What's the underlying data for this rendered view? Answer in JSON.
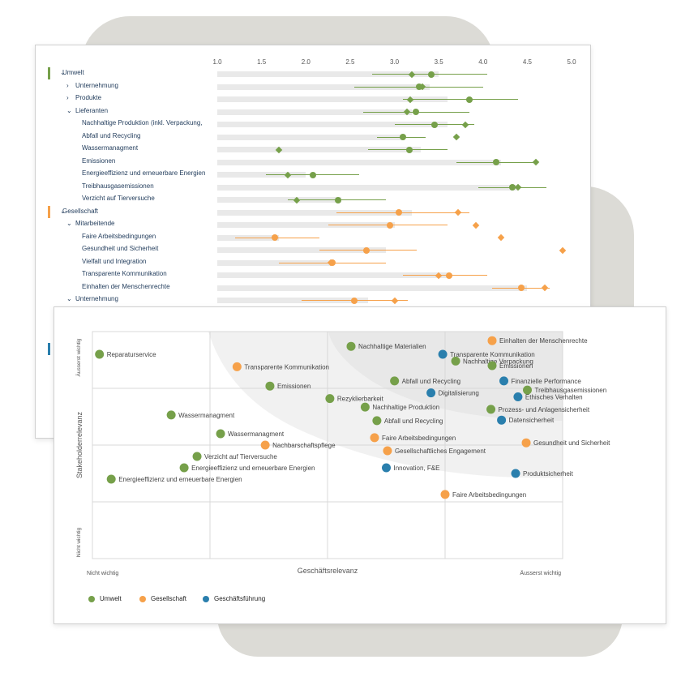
{
  "colors": {
    "umwelt": "#76a04a",
    "gesellschaft": "#f6a14a",
    "geschaeftsfuehrung": "#2a7fad",
    "grid": "#d8d8d8",
    "bar": "#e9e9e9"
  },
  "chart_data": [
    {
      "type": "bar",
      "axis_ticks": [
        "1.0",
        "1.5",
        "2.0",
        "2.5",
        "3.0",
        "3.5",
        "4.0",
        "4.5",
        "5.0"
      ],
      "xlim": [
        1.0,
        5.0
      ],
      "rows": [
        {
          "label": "Umwelt",
          "group": "umwelt",
          "level": 0,
          "chevron": "down",
          "bar": [
            1,
            3.5
          ],
          "range": [
            2.75,
            4.05
          ],
          "dot": 3.42,
          "diamond": 3.2
        },
        {
          "label": "Unternehmung",
          "group": "umwelt",
          "level": 1,
          "chevron": "right",
          "bar": [
            1,
            3.4
          ],
          "range": [
            2.55,
            4.0
          ],
          "dot": 3.28,
          "diamond": 3.32
        },
        {
          "label": "Produkte",
          "group": "umwelt",
          "level": 1,
          "chevron": "right",
          "bar": [
            1,
            3.6
          ],
          "range": [
            3.1,
            4.4
          ],
          "dot": 3.85,
          "diamond": 3.18
        },
        {
          "label": "Lieferanten",
          "group": "umwelt",
          "level": 1,
          "chevron": "down",
          "bar": [
            1,
            3.2
          ],
          "range": [
            2.65,
            3.85
          ],
          "dot": 3.24,
          "diamond": 3.14
        },
        {
          "label": "Nachhaltige Produktion (inkl. Verpackung,",
          "group": "umwelt",
          "level": 2,
          "chevron": "",
          "bar": [
            1,
            3.6
          ],
          "range": [
            3.0,
            3.9
          ],
          "dot": 3.45,
          "diamond": 3.8
        },
        {
          "label": "Abfall und Recycling",
          "group": "umwelt",
          "level": 2,
          "chevron": "",
          "bar": [
            1,
            3.1
          ],
          "range": [
            2.8,
            3.35
          ],
          "dot": 3.1,
          "diamond": 3.7
        },
        {
          "label": "Wassermanagment",
          "group": "umwelt",
          "level": 2,
          "chevron": "",
          "bar": [
            1,
            3.3
          ],
          "range": [
            2.7,
            3.6
          ],
          "dot": 3.17,
          "diamond": 1.7
        },
        {
          "label": "Emissionen",
          "group": "umwelt",
          "level": 2,
          "chevron": "",
          "bar": [
            1,
            4.2
          ],
          "range": [
            3.7,
            4.6
          ],
          "dot": 4.15,
          "diamond": 4.6
        },
        {
          "label": "Energieeffizienz und erneuerbare Energien",
          "group": "umwelt",
          "level": 2,
          "chevron": "",
          "bar": [
            1,
            2.0
          ],
          "range": [
            1.55,
            2.6
          ],
          "dot": 2.08,
          "diamond": 1.8
        },
        {
          "label": "Treibhausgasemissionen",
          "group": "umwelt",
          "level": 2,
          "chevron": "",
          "bar": [
            1,
            4.4
          ],
          "range": [
            3.95,
            4.72
          ],
          "dot": 4.33,
          "diamond": 4.4
        },
        {
          "label": "Verzicht auf Tierversuche",
          "group": "umwelt",
          "level": 2,
          "chevron": "",
          "bar": [
            1,
            2.4
          ],
          "range": [
            1.8,
            2.9
          ],
          "dot": 2.36,
          "diamond": 1.9
        },
        {
          "label": "Gesellschaft",
          "group": "gesellschaft",
          "level": 0,
          "chevron": "down",
          "bar": [
            1,
            3.2
          ],
          "range": [
            2.35,
            3.85
          ],
          "dot": 3.05,
          "diamond": 3.72
        },
        {
          "label": "Mitarbeitende",
          "group": "gesellschaft",
          "level": 1,
          "chevron": "down",
          "bar": [
            1,
            3.0
          ],
          "range": [
            2.25,
            3.6
          ],
          "dot": 2.95,
          "diamond": 3.92
        },
        {
          "label": "Faire Arbeitsbedingungen",
          "group": "gesellschaft",
          "level": 2,
          "chevron": "",
          "bar": [
            1,
            1.7
          ],
          "range": [
            1.2,
            2.15
          ],
          "dot": 1.65,
          "diamond": 4.2
        },
        {
          "label": "Gesundheit und Sicherheit",
          "group": "gesellschaft",
          "level": 2,
          "chevron": "",
          "bar": [
            1,
            2.9
          ],
          "range": [
            2.15,
            3.25
          ],
          "dot": 2.68,
          "diamond": 4.9
        },
        {
          "label": "Vielfalt und Integration",
          "group": "gesellschaft",
          "level": 2,
          "chevron": "",
          "bar": [
            1,
            2.3
          ],
          "range": [
            1.7,
            2.9
          ],
          "dot": 2.3,
          "diamond": 2.28
        },
        {
          "label": "Transparente Kommunikation",
          "group": "gesellschaft",
          "level": 2,
          "chevron": "",
          "bar": [
            1,
            3.6
          ],
          "range": [
            3.1,
            4.05
          ],
          "dot": 3.62,
          "diamond": 3.5
        },
        {
          "label": "Einhalten der Menschenrechte",
          "group": "gesellschaft",
          "level": 2,
          "chevron": "",
          "bar": [
            1,
            4.5
          ],
          "range": [
            4.1,
            4.75
          ],
          "dot": 4.43,
          "diamond": 4.7
        },
        {
          "label": "Unternehmung",
          "group": "gesellschaft",
          "level": 1,
          "chevron": "down",
          "bar": [
            1,
            2.7
          ],
          "range": [
            1.95,
            3.15
          ],
          "dot": 2.55,
          "diamond": 3.0
        }
      ]
    },
    {
      "type": "scatter",
      "xlabel": "Geschäftsrelevanz",
      "ylabel": "Stakeholderrelevanz",
      "x_min_label": "Nicht wichtig",
      "x_max_label": "Äusserst wichtig",
      "y_min_label": "Nicht wichtig",
      "y_max_label": "Äusserst wichtig",
      "xlim": [
        0,
        4
      ],
      "ylim": [
        0,
        4
      ],
      "legend": [
        {
          "name": "Umwelt",
          "group": "umwelt"
        },
        {
          "name": "Gesellschaft",
          "group": "gesellschaft"
        },
        {
          "name": "Geschäftsführung",
          "group": "geschaeftsfuehrung"
        }
      ],
      "points": [
        {
          "label": "Reparaturservice",
          "group": "umwelt",
          "x": 0.06,
          "y": 3.6
        },
        {
          "label": "Nachhaltige Materialien",
          "group": "umwelt",
          "x": 2.2,
          "y": 3.74
        },
        {
          "label": "Einhalten der Menschenrechte",
          "group": "gesellschaft",
          "x": 3.4,
          "y": 3.84
        },
        {
          "label": "Transparente Kommunikation",
          "group": "geschaeftsfuehrung",
          "x": 2.98,
          "y": 3.6
        },
        {
          "label": "Nachhaltige Verpackung",
          "group": "umwelt",
          "x": 3.09,
          "y": 3.48
        },
        {
          "label": "Emissionen",
          "group": "umwelt",
          "x": 3.4,
          "y": 3.4
        },
        {
          "label": "Transparente Kommunikation",
          "group": "gesellschaft",
          "x": 1.23,
          "y": 3.38
        },
        {
          "label": "Abfall und Recycling",
          "group": "umwelt",
          "x": 2.57,
          "y": 3.13
        },
        {
          "label": "Finanzielle Performance",
          "group": "geschaeftsfuehrung",
          "x": 3.5,
          "y": 3.13
        },
        {
          "label": "Emissionen",
          "group": "umwelt",
          "x": 1.51,
          "y": 3.04
        },
        {
          "label": "Treibhausgasemissionen",
          "group": "umwelt",
          "x": 3.7,
          "y": 2.97
        },
        {
          "label": "Digitalisierung",
          "group": "geschaeftsfuehrung",
          "x": 2.88,
          "y": 2.92
        },
        {
          "label": "Ethisches Verhalten",
          "group": "geschaeftsfuehrung",
          "x": 3.62,
          "y": 2.85
        },
        {
          "label": "Rezyklierbarkeit",
          "group": "umwelt",
          "x": 2.02,
          "y": 2.82
        },
        {
          "label": "Nachhaltige Produktion",
          "group": "umwelt",
          "x": 2.32,
          "y": 2.67
        },
        {
          "label": "Prozess- und Anlagensicherheit",
          "group": "umwelt",
          "x": 3.39,
          "y": 2.63
        },
        {
          "label": "Wassermanagment",
          "group": "umwelt",
          "x": 0.67,
          "y": 2.53
        },
        {
          "label": "Abfall und Recycling",
          "group": "umwelt",
          "x": 2.42,
          "y": 2.43
        },
        {
          "label": "Datensicherheit",
          "group": "geschaeftsfuehrung",
          "x": 3.48,
          "y": 2.44
        },
        {
          "label": "Wassermanagment",
          "group": "umwelt",
          "x": 1.09,
          "y": 2.2
        },
        {
          "label": "Faire Arbeitsbedingungen",
          "group": "gesellschaft",
          "x": 2.4,
          "y": 2.13
        },
        {
          "label": "Nachbarschaftspflege",
          "group": "gesellschaft",
          "x": 1.47,
          "y": 2.0
        },
        {
          "label": "Gesundheit und Sicherheit",
          "group": "gesellschaft",
          "x": 3.69,
          "y": 2.04
        },
        {
          "label": "Gesellschaftliches Engagement",
          "group": "gesellschaft",
          "x": 2.51,
          "y": 1.9
        },
        {
          "label": "Verzicht auf Tierversuche",
          "group": "umwelt",
          "x": 0.89,
          "y": 1.8
        },
        {
          "label": "Energieeffizienz und erneuerbare Energien",
          "group": "umwelt",
          "x": 0.78,
          "y": 1.6
        },
        {
          "label": "Innovation, F&E",
          "group": "geschaeftsfuehrung",
          "x": 2.5,
          "y": 1.6
        },
        {
          "label": "Produktsicherheit",
          "group": "geschaeftsfuehrung",
          "x": 3.6,
          "y": 1.5
        },
        {
          "label": "Energieeffizienz und erneuerbare Energien",
          "group": "umwelt",
          "x": 0.16,
          "y": 1.4
        },
        {
          "label": "Faire Arbeitsbedingungen",
          "group": "gesellschaft",
          "x": 3.0,
          "y": 1.13
        }
      ]
    }
  ]
}
